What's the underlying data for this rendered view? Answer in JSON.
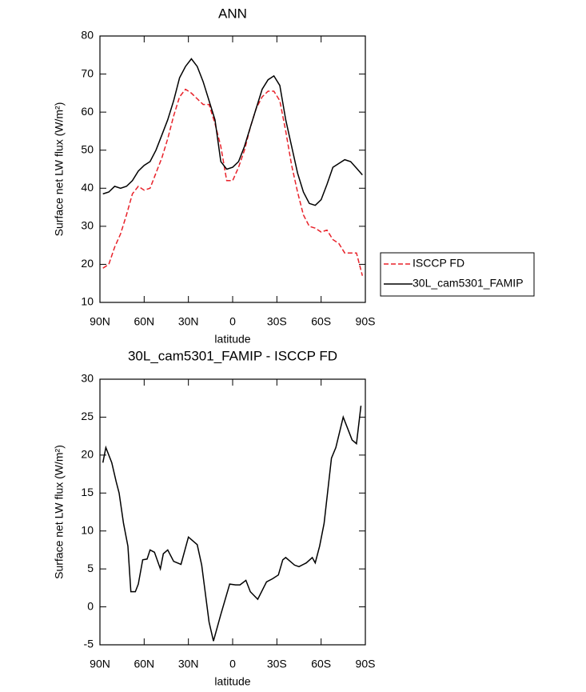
{
  "chart_data": [
    {
      "type": "line",
      "title": "ANN",
      "xlabel": "latitude",
      "ylabel": "Surface net LW flux (W/m²)",
      "x": [
        88,
        84,
        80,
        76,
        72,
        68,
        64,
        60,
        56,
        52,
        48,
        44,
        40,
        36,
        32,
        28,
        24,
        20,
        16,
        12,
        8,
        4,
        0,
        -4,
        -8,
        -12,
        -16,
        -20,
        -24,
        -28,
        -32,
        -36,
        -40,
        -44,
        -48,
        -52,
        -56,
        -60,
        -64,
        -68,
        -72,
        -76,
        -80,
        -84,
        -88
      ],
      "series": [
        {
          "name": "ISCCP FD",
          "color": "#e8222a",
          "linestyle": "dashed",
          "values": [
            19,
            20,
            24.5,
            28,
            33,
            38.5,
            40.5,
            39.5,
            40,
            44,
            48,
            53,
            59,
            64,
            66,
            65,
            63.5,
            62,
            62,
            57,
            51,
            42,
            42,
            45.5,
            50,
            56,
            61,
            64,
            65.5,
            65.5,
            63,
            55,
            46,
            39,
            33,
            30,
            29.5,
            28.5,
            29,
            26.5,
            25.5,
            23,
            23,
            23,
            17
          ]
        },
        {
          "name": "30L_cam5301_FAMIP",
          "color": "#000000",
          "linestyle": "solid",
          "values": [
            38.5,
            39,
            40.5,
            40,
            40.5,
            42,
            44.5,
            46,
            47,
            50,
            54,
            58,
            63,
            69,
            72,
            74,
            72,
            68,
            63,
            58,
            47,
            45,
            45.5,
            47,
            51,
            56,
            61,
            66,
            68.5,
            69.5,
            67,
            58,
            51,
            44,
            39,
            36,
            35.5,
            37,
            41,
            45.5,
            46.5,
            47.5,
            47,
            45.3,
            43.5
          ]
        }
      ],
      "xlim": [
        90,
        -90
      ],
      "xticks": [
        {
          "value": 90,
          "label": "90N"
        },
        {
          "value": 60,
          "label": "60N"
        },
        {
          "value": 30,
          "label": "30N"
        },
        0,
        {
          "value": -30,
          "label": "30S"
        },
        {
          "value": -60,
          "label": "60S"
        },
        {
          "value": -90,
          "label": "90S"
        }
      ],
      "ylim": [
        10,
        80
      ],
      "yticks": [
        10,
        20,
        30,
        40,
        50,
        60,
        70,
        80
      ],
      "legend": "outside-right",
      "grid": false
    },
    {
      "type": "line",
      "title": "30L_cam5301_FAMIP - ISCCP FD",
      "xlabel": "latitude",
      "ylabel": "Surface net LW flux (W/m²)",
      "x": [
        88,
        86,
        82,
        79,
        77,
        74,
        71,
        69,
        66,
        64,
        61,
        58,
        56,
        53,
        49,
        47,
        44,
        40,
        35,
        30,
        24,
        21,
        16,
        13,
        8,
        2,
        -2,
        -5,
        -9,
        -12,
        -17,
        -23,
        -27,
        -31,
        -34,
        -36,
        -42,
        -45,
        -50,
        -54,
        -56,
        -59,
        -62,
        -67,
        -70,
        -75,
        -78,
        -81,
        -84,
        -87
      ],
      "values": [
        19,
        21,
        19,
        16.5,
        15,
        11,
        8,
        2,
        2,
        3,
        6.2,
        6.3,
        7.5,
        7.2,
        5,
        7,
        7.5,
        6,
        5.6,
        9.2,
        8.2,
        5.5,
        -2,
        -4.5,
        -1,
        3,
        2.9,
        2.9,
        3.5,
        2,
        1,
        3.3,
        3.7,
        4.2,
        6.2,
        6.5,
        5.5,
        5.3,
        5.8,
        6.5,
        5.8,
        8,
        11,
        19.6,
        21,
        25,
        23.5,
        22,
        21.5,
        26.5
      ],
      "color": "#000000",
      "xlim": [
        90,
        -90
      ],
      "xticks": [
        {
          "value": 90,
          "label": "90N"
        },
        {
          "value": 60,
          "label": "60N"
        },
        {
          "value": 30,
          "label": "30N"
        },
        0,
        {
          "value": -30,
          "label": "30S"
        },
        {
          "value": -60,
          "label": "60S"
        },
        {
          "value": -90,
          "label": "90S"
        }
      ],
      "ylim": [
        -5,
        30
      ],
      "yticks": [
        -5,
        0,
        5,
        10,
        15,
        20,
        25,
        30
      ],
      "grid": false
    }
  ]
}
